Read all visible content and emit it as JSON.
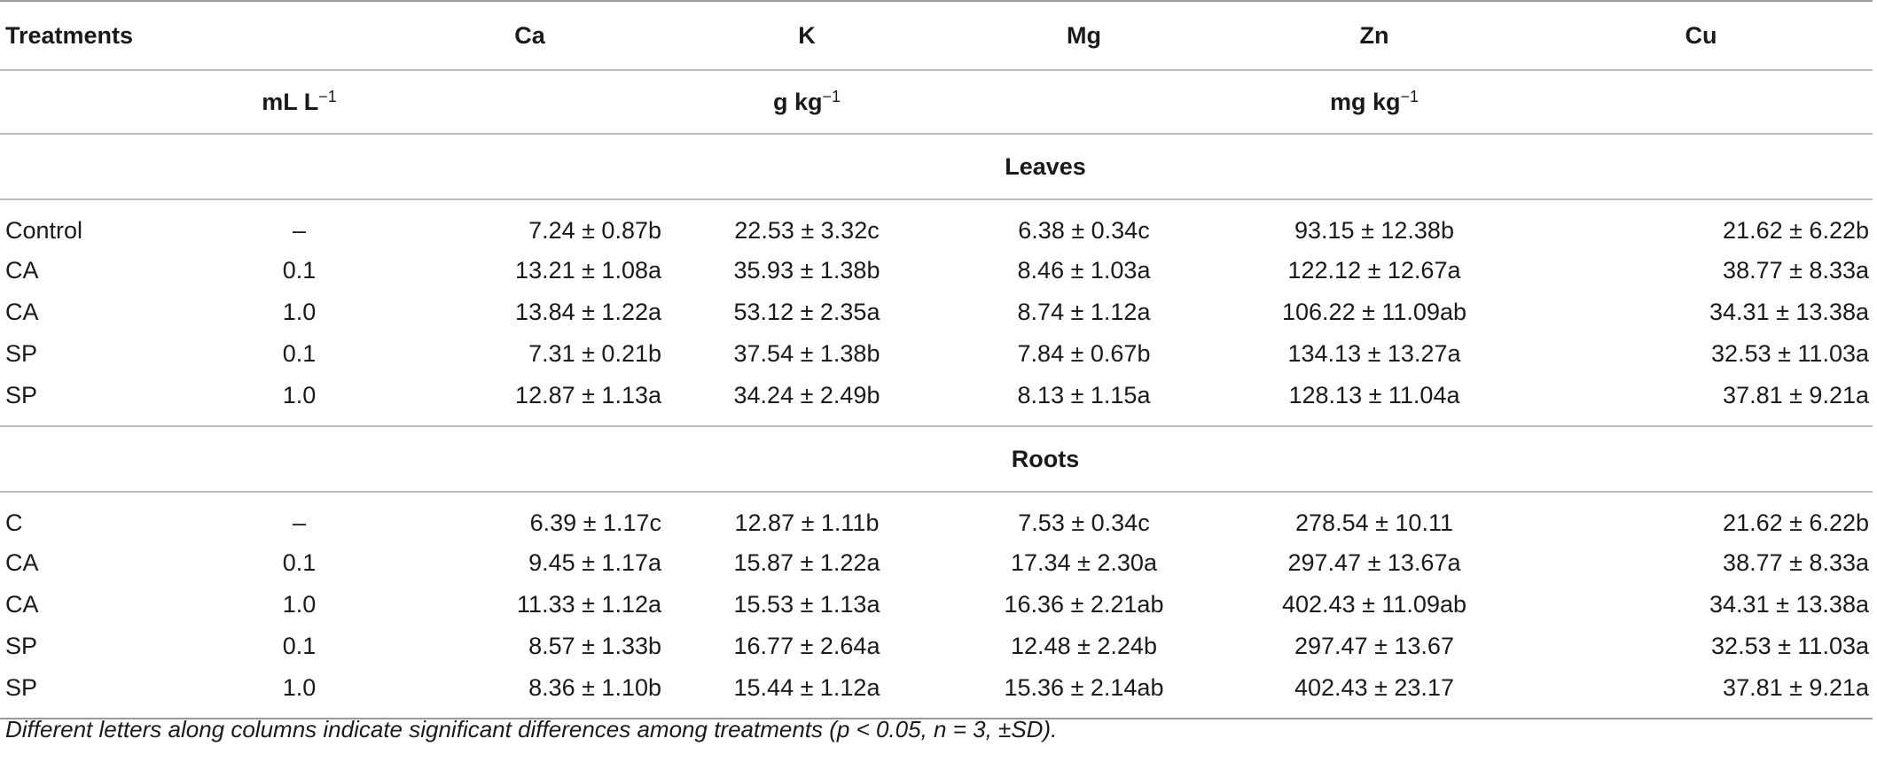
{
  "table": {
    "headers": [
      "Treatments",
      "Ca",
      "K",
      "Mg",
      "Zn",
      "Cu"
    ],
    "units": {
      "treatment_unit": "mL L",
      "treatment_unit_sup": "−1",
      "macro_unit": "g kg",
      "macro_unit_sup": "−1",
      "micro_unit": "mg kg",
      "micro_unit_sup": "−1"
    },
    "sections": [
      {
        "title": "Leaves",
        "rows": [
          {
            "treatment": "Control",
            "dose": "–",
            "ca": "7.24 ± 0.87b",
            "k": "22.53 ± 3.32c",
            "mg": "6.38 ± 0.34c",
            "zn": "93.15 ± 12.38b",
            "cu": "21.62 ± 6.22b"
          },
          {
            "treatment": "CA",
            "dose": "0.1",
            "ca": "13.21 ± 1.08a",
            "k": "35.93 ± 1.38b",
            "mg": "8.46 ± 1.03a",
            "zn": "122.12 ± 12.67a",
            "cu": "38.77 ± 8.33a"
          },
          {
            "treatment": "CA",
            "dose": "1.0",
            "ca": "13.84 ± 1.22a",
            "k": "53.12 ± 2.35a",
            "mg": "8.74 ± 1.12a",
            "zn": "106.22 ± 11.09ab",
            "cu": "34.31 ± 13.38a"
          },
          {
            "treatment": "SP",
            "dose": "0.1",
            "ca": "7.31 ± 0.21b",
            "k": "37.54 ± 1.38b",
            "mg": "7.84 ± 0.67b",
            "zn": "134.13 ± 13.27a",
            "cu": "32.53 ± 11.03a"
          },
          {
            "treatment": "SP",
            "dose": "1.0",
            "ca": "12.87 ± 1.13a",
            "k": "34.24 ± 2.49b",
            "mg": "8.13 ± 1.15a",
            "zn": "128.13 ± 11.04a",
            "cu": "37.81 ± 9.21a"
          }
        ]
      },
      {
        "title": "Roots",
        "rows": [
          {
            "treatment": "C",
            "dose": "–",
            "ca": "6.39 ± 1.17c",
            "k": "12.87 ± 1.11b",
            "mg": "7.53 ± 0.34c",
            "zn": "278.54 ± 10.11",
            "cu": "21.62 ± 6.22b"
          },
          {
            "treatment": "CA",
            "dose": "0.1",
            "ca": "9.45 ± 1.17a",
            "k": "15.87 ± 1.22a",
            "mg": "17.34 ± 2.30a",
            "zn": "297.47 ± 13.67a",
            "cu": "38.77 ± 8.33a"
          },
          {
            "treatment": "CA",
            "dose": "1.0",
            "ca": "11.33 ± 1.12a",
            "k": "15.53 ± 1.13a",
            "mg": "16.36 ± 2.21ab",
            "zn": "402.43 ± 11.09ab",
            "cu": "34.31 ± 13.38a"
          },
          {
            "treatment": "SP",
            "dose": "0.1",
            "ca": "8.57 ± 1.33b",
            "k": "16.77 ± 2.64a",
            "mg": "12.48 ± 2.24b",
            "zn": "297.47 ± 13.67",
            "cu": "32.53 ± 11.03a"
          },
          {
            "treatment": "SP",
            "dose": "1.0",
            "ca": "8.36 ± 1.10b",
            "k": "15.44 ± 1.12a",
            "mg": "15.36 ± 2.14ab",
            "zn": "402.43 ± 23.17",
            "cu": "37.81 ± 9.21a"
          }
        ]
      }
    ]
  },
  "footnote": "Different letters along columns indicate significant differences among treatments (p < 0.05, n = 3, ±SD)."
}
